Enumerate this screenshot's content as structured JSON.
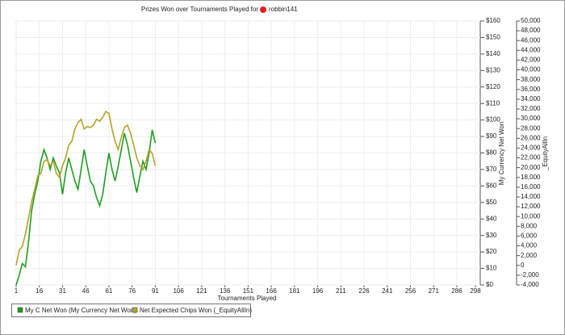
{
  "chart_data": {
    "type": "line",
    "title": "Prizes Won over Tournaments Played for",
    "title_user": "robbin141",
    "x_label": "Tournaments Played",
    "y_label": "My Currency Net Won",
    "y2_label": "_EquityAllIn",
    "x": [
      1,
      3,
      5,
      7,
      9,
      11,
      13,
      15,
      17,
      19,
      21,
      23,
      25,
      27,
      29,
      31,
      33,
      35,
      37,
      39,
      41,
      43,
      45,
      47,
      49,
      51,
      53,
      55,
      57,
      59,
      61,
      63,
      65,
      67,
      69,
      71,
      73,
      75,
      77,
      79,
      81,
      83,
      85,
      87,
      89,
      91
    ],
    "series": [
      {
        "name": "My C Net Won (My Currency Net Won)",
        "color": "#1f9e1f",
        "values": [
          0,
          6,
          13,
          11,
          26,
          45,
          55,
          63,
          75,
          82,
          77,
          70,
          77,
          72,
          68,
          55,
          68,
          77,
          70,
          63,
          58,
          70,
          82,
          72,
          63,
          60,
          53,
          48,
          55,
          68,
          80,
          70,
          63,
          72,
          82,
          92,
          85,
          75,
          65,
          56,
          66,
          75,
          70,
          80,
          94,
          86
        ]
      },
      {
        "name": "Net Expected Chips Won (_EquityAllIn)",
        "color": "#b5a22a",
        "axis": "y2",
        "values": [
          0,
          3100,
          3900,
          6400,
          9700,
          13000,
          15500,
          18300,
          18800,
          21300,
          21600,
          20400,
          21300,
          18800,
          18000,
          20400,
          22000,
          24600,
          25400,
          27900,
          29200,
          29900,
          27900,
          28400,
          28200,
          28700,
          29900,
          29500,
          30300,
          31500,
          31100,
          27900,
          25400,
          23700,
          26200,
          28200,
          28700,
          27000,
          24600,
          22000,
          20400,
          19600,
          21300,
          23700,
          22900,
          20400
        ]
      }
    ],
    "xlim": [
      1,
      298
    ],
    "xticks": [
      1,
      16,
      31,
      46,
      61,
      76,
      91,
      106,
      121,
      136,
      151,
      166,
      181,
      196,
      211,
      226,
      241,
      256,
      271,
      286,
      298
    ],
    "ylim": [
      0,
      160
    ],
    "yticks": [
      {
        "value": 0,
        "label": "$0"
      },
      {
        "value": 10,
        "label": "$10"
      },
      {
        "value": 20,
        "label": "$20"
      },
      {
        "value": 30,
        "label": "$30"
      },
      {
        "value": 40,
        "label": "$40"
      },
      {
        "value": 50,
        "label": "$50"
      },
      {
        "value": 60,
        "label": "$60"
      },
      {
        "value": 70,
        "label": "$70"
      },
      {
        "value": 80,
        "label": "$80"
      },
      {
        "value": 90,
        "label": "$90"
      },
      {
        "value": 100,
        "label": "$100"
      },
      {
        "value": 110,
        "label": "$110"
      },
      {
        "value": 120,
        "label": "$120"
      },
      {
        "value": 130,
        "label": "$130"
      },
      {
        "value": 140,
        "label": "$140"
      },
      {
        "value": 150,
        "label": "$150"
      },
      {
        "value": 160,
        "label": "$160"
      }
    ],
    "y2lim": [
      -4000,
      50000
    ],
    "y2ticks": [
      {
        "value": -4000,
        "label": "-4,000"
      },
      {
        "value": -2000,
        "label": "-2,000"
      },
      0,
      {
        "value": 2000,
        "label": "2,000"
      },
      {
        "value": 4000,
        "label": "4,000"
      },
      {
        "value": 6000,
        "label": "6,000"
      },
      {
        "value": 8000,
        "label": "8,000"
      },
      {
        "value": 10000,
        "label": "10,000"
      },
      {
        "value": 12000,
        "label": "12,000"
      },
      {
        "value": 14000,
        "label": "14,000"
      },
      {
        "value": 16000,
        "label": "16,000"
      },
      {
        "value": 18000,
        "label": "18,000"
      },
      {
        "value": 20000,
        "label": "20,000"
      },
      {
        "value": 22000,
        "label": "22,000"
      },
      {
        "value": 24000,
        "label": "24,000"
      },
      {
        "value": 26000,
        "label": "26,000"
      },
      {
        "value": 28000,
        "label": "28,000"
      },
      {
        "value": 30000,
        "label": "30,000"
      },
      {
        "value": 32000,
        "label": "32,000"
      },
      {
        "value": 34000,
        "label": "34,000"
      },
      {
        "value": 36000,
        "label": "36,000"
      },
      {
        "value": 38000,
        "label": "38,000"
      },
      {
        "value": 40000,
        "label": "40,000"
      },
      {
        "value": 42000,
        "label": "42,000"
      },
      {
        "value": 44000,
        "label": "44,000"
      },
      {
        "value": 46000,
        "label": "46,000"
      },
      {
        "value": 48000,
        "label": "48,000"
      },
      {
        "value": 50000,
        "label": "50,000"
      }
    ],
    "grid": true
  }
}
